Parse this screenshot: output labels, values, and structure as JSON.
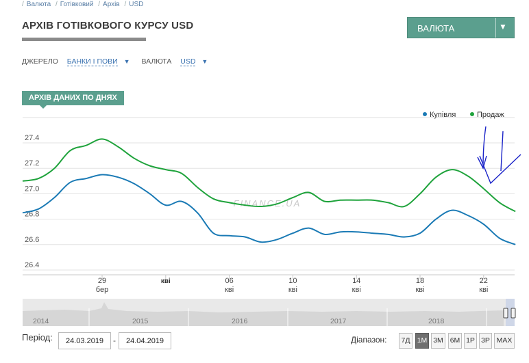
{
  "breadcrumb": [
    "Валюта",
    "Готівковий",
    "Архів",
    "USD"
  ],
  "page_title": "АРХІВ ГОТІВКОВОГО КУРСУ USD",
  "currency_dropdown": {
    "label": "ВАЛЮТА",
    "icon": "chevron-down-icon"
  },
  "filters": {
    "source_label": "ДЖЕРЕЛО",
    "source_value": "БАНКИ І ПОВИ",
    "currency_label": "ВАЛЮТА",
    "currency_value": "USD"
  },
  "tab_label": "АРХІВ ДАНИХ ПО ДНЯХ",
  "colors": {
    "accent": "#5b9f8e",
    "buy": "#1a7ab5",
    "sell": "#1fa33c",
    "annotation": "#1a23c8"
  },
  "chart_data": {
    "type": "line",
    "title": "",
    "xlabel": "",
    "ylabel": "",
    "watermark": "FINANCE.UA",
    "ylim": [
      26.4,
      27.6
    ],
    "yticks": [
      26.4,
      26.6,
      26.8,
      27.0,
      27.2,
      27.4
    ],
    "x_days": [
      0,
      31
    ],
    "xticks": [
      {
        "day": 5,
        "day_label": "29",
        "month_label": "бер"
      },
      {
        "day": 9,
        "day_label": "",
        "month_label": "кві"
      },
      {
        "day": 13,
        "day_label": "06",
        "month_label": "кві"
      },
      {
        "day": 17,
        "day_label": "10",
        "month_label": "кві"
      },
      {
        "day": 21,
        "day_label": "14",
        "month_label": "кві"
      },
      {
        "day": 25,
        "day_label": "18",
        "month_label": "кві"
      },
      {
        "day": 29,
        "day_label": "22",
        "month_label": "кві"
      }
    ],
    "legend": [
      "Купівля",
      "Продаж"
    ],
    "legend_position": "top-right",
    "series": [
      {
        "name": "Купівля",
        "points": [
          [
            0,
            26.85
          ],
          [
            1,
            26.88
          ],
          [
            2,
            26.97
          ],
          [
            3,
            27.09
          ],
          [
            4,
            27.12
          ],
          [
            5,
            27.15
          ],
          [
            6,
            27.13
          ],
          [
            7,
            27.08
          ],
          [
            8,
            27.0
          ],
          [
            9,
            26.91
          ],
          [
            10,
            26.94
          ],
          [
            11,
            26.85
          ],
          [
            12,
            26.69
          ],
          [
            13,
            26.67
          ],
          [
            14,
            26.66
          ],
          [
            15,
            26.62
          ],
          [
            16,
            26.64
          ],
          [
            17,
            26.69
          ],
          [
            18,
            26.73
          ],
          [
            19,
            26.68
          ],
          [
            20,
            26.7
          ],
          [
            21,
            26.7
          ],
          [
            22,
            26.69
          ],
          [
            23,
            26.68
          ],
          [
            24,
            26.66
          ],
          [
            25,
            26.69
          ],
          [
            26,
            26.8
          ],
          [
            27,
            26.87
          ],
          [
            28,
            26.83
          ],
          [
            29,
            26.76
          ],
          [
            30,
            26.65
          ],
          [
            31,
            26.6
          ]
        ]
      },
      {
        "name": "Продаж",
        "points": [
          [
            0,
            27.1
          ],
          [
            1,
            27.12
          ],
          [
            2,
            27.2
          ],
          [
            3,
            27.34
          ],
          [
            4,
            27.38
          ],
          [
            5,
            27.43
          ],
          [
            6,
            27.37
          ],
          [
            7,
            27.28
          ],
          [
            8,
            27.22
          ],
          [
            9,
            27.19
          ],
          [
            10,
            27.16
          ],
          [
            11,
            27.05
          ],
          [
            12,
            26.96
          ],
          [
            13,
            26.93
          ],
          [
            14,
            26.91
          ],
          [
            15,
            26.9
          ],
          [
            16,
            26.92
          ],
          [
            17,
            26.97
          ],
          [
            18,
            27.01
          ],
          [
            19,
            26.94
          ],
          [
            20,
            26.95
          ],
          [
            21,
            26.95
          ],
          [
            22,
            26.95
          ],
          [
            23,
            26.93
          ],
          [
            24,
            26.9
          ],
          [
            25,
            27.0
          ],
          [
            26,
            27.13
          ],
          [
            27,
            27.19
          ],
          [
            28,
            27.14
          ],
          [
            29,
            27.04
          ],
          [
            30,
            26.93
          ],
          [
            31,
            26.86
          ]
        ]
      }
    ],
    "navigator": {
      "years": [
        "2014",
        "2015",
        "2016",
        "2017",
        "2018"
      ]
    }
  },
  "period": {
    "label": "Період:",
    "from": "24.03.2019",
    "separator": "-",
    "to": "24.04.2019"
  },
  "range": {
    "label": "Діапазон:",
    "buttons": [
      "7Д",
      "1М",
      "3М",
      "6М",
      "1Р",
      "3Р",
      "MAX"
    ],
    "active": "1М"
  }
}
